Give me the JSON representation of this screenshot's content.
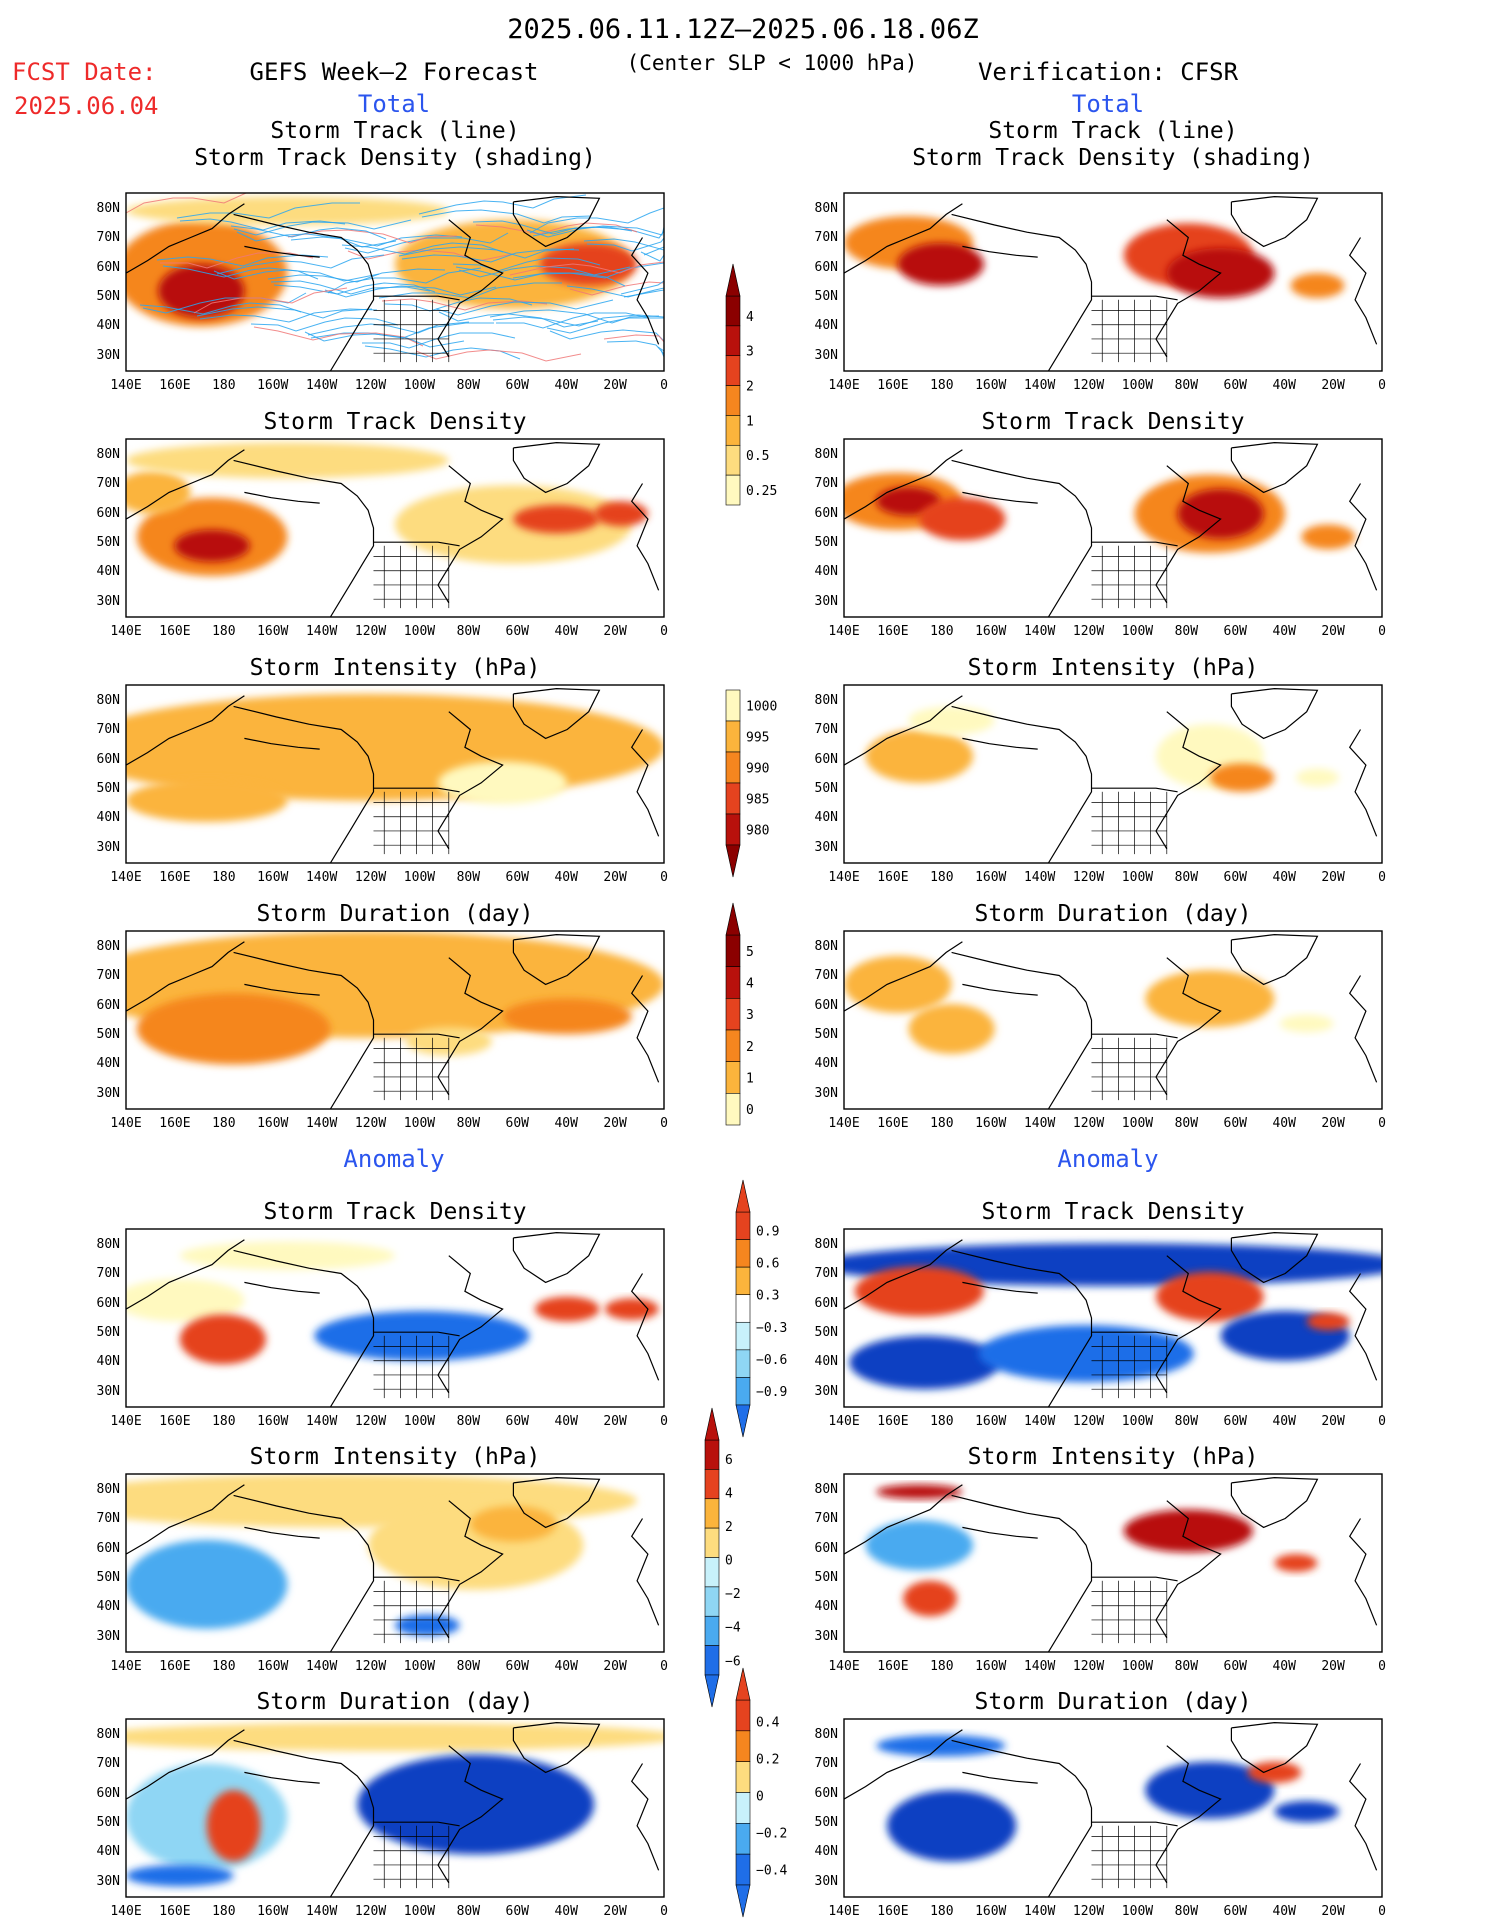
{
  "header": {
    "date_range": "2025.06.11.12Z–2025.06.18.06Z",
    "fcst_label": "FCST Date:",
    "fcst_date": "2025.06.04",
    "left_title": "GEFS Week–2 Forecast",
    "subtitle": "(Center SLP < 1000 hPa)",
    "right_title": "Verification: CFSR",
    "total_label": "Total",
    "anomaly_label": "Anomaly"
  },
  "colors": {
    "red_text": "#ee2a2a",
    "blue_text": "#2b55ee",
    "warm": [
      "#fff9bf",
      "#fddc7f",
      "#fbb43c",
      "#f5861f",
      "#e5431f",
      "#b8110c",
      "#8b0000"
    ],
    "cool": [
      "#c8f1fb",
      "#8fd6f4",
      "#4aaaf0",
      "#1f6ee8",
      "#0a3fc2"
    ],
    "track_forecast": "#2aa6f0",
    "track_forecast_hot": "#f07878"
  },
  "panel_titles": {
    "track_1": "Storm Track (line)",
    "track_2": "Storm Track Density (shading)",
    "density": "Storm Track Density",
    "intensity": "Storm Intensity (hPa)",
    "duration": "Storm Duration (day)"
  },
  "axes": {
    "lat_labels": [
      "80N",
      "70N",
      "60N",
      "50N",
      "40N",
      "30N"
    ],
    "lon_labels": [
      "140E",
      "160E",
      "180",
      "160W",
      "140W",
      "120W",
      "100W",
      "80W",
      "60W",
      "40W",
      "20W",
      "0"
    ]
  },
  "colorbars": {
    "density_total": [
      "4",
      "3",
      "2",
      "1",
      "0.5",
      "0.25"
    ],
    "intensity_total": [
      "1000",
      "995",
      "990",
      "985",
      "980"
    ],
    "duration_total": [
      "5",
      "4",
      "3",
      "2",
      "1",
      "0"
    ],
    "density_anomaly": [
      "0.9",
      "0.6",
      "0.3",
      "−0.3",
      "−0.6",
      "−0.9"
    ],
    "intensity_anomaly": [
      "6",
      "4",
      "2",
      "0",
      "−2",
      "−4",
      "−6"
    ],
    "duration_anomaly": [
      "0.4",
      "0.2",
      "0",
      "−0.2",
      "−0.4"
    ]
  }
}
